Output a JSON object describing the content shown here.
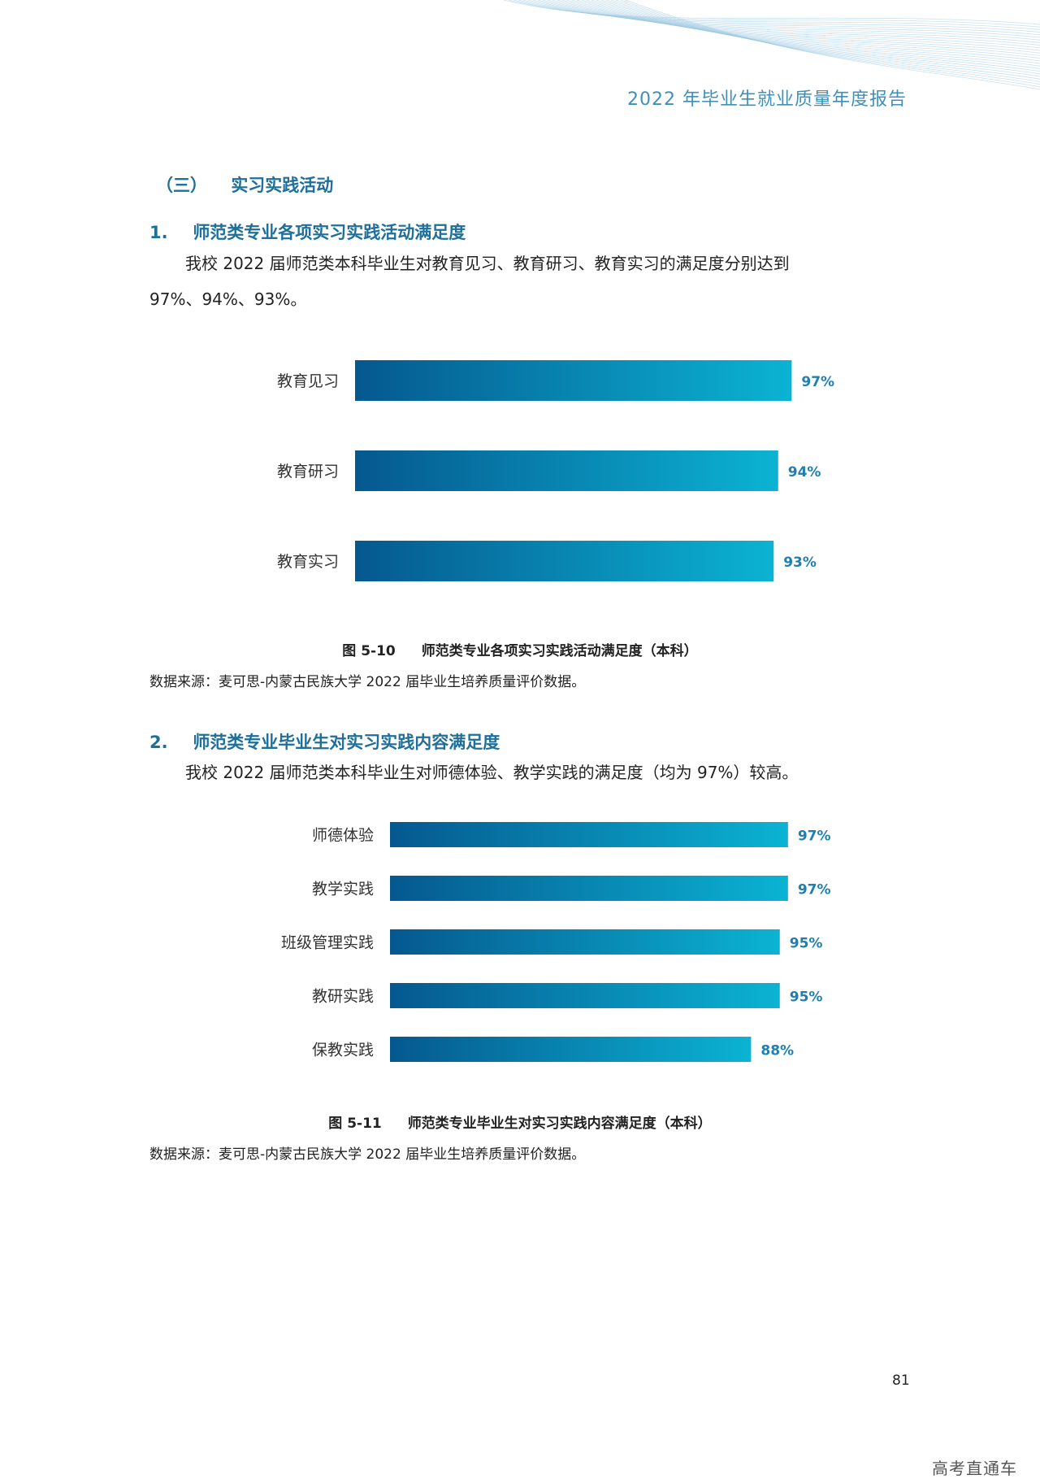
{
  "header": {
    "report_title": "2022 年毕业生就业质量年度报告"
  },
  "section": {
    "number": "（三）",
    "title": "实习实践活动"
  },
  "subsection1": {
    "number": "1.",
    "title": "师范类专业各项实习实践活动满足度",
    "paragraph_line1": "我校 2022 届师范类本科毕业生对教育见习、教育研习、教育实习的满足度分别达到",
    "paragraph_line2": "97%、94%、93%。"
  },
  "figure1": {
    "number": "图 5-10",
    "caption": "师范类专业各项实习实践活动满足度（本科）",
    "source": "数据来源：麦可思-内蒙古民族大学 2022 届毕业生培养质量评价数据。"
  },
  "subsection2": {
    "number": "2.",
    "title": "师范类专业毕业生对实习实践内容满足度",
    "paragraph": "我校 2022 届师范类本科毕业生对师德体验、教学实践的满足度（均为 97%）较高。"
  },
  "figure2": {
    "number": "图 5-11",
    "caption": "师范类专业毕业生对实习实践内容满足度（本科）",
    "source": "数据来源：麦可思-内蒙古民族大学 2022 届毕业生培养质量评价数据。"
  },
  "page_number": "81",
  "watermark": "高考直通车",
  "colors": {
    "accent": "#1e6f9a",
    "bar_gradient_start": "#05588f",
    "bar_gradient_end": "#0bb3d3",
    "value_label": "#1f7fb0"
  },
  "chart_data": [
    {
      "type": "bar",
      "orientation": "horizontal",
      "categories": [
        "教育见习",
        "教育研习",
        "教育实习"
      ],
      "values": [
        97,
        94,
        93
      ],
      "value_labels": [
        "97%",
        "94%",
        "93%"
      ],
      "xlim": [
        0,
        100
      ],
      "grid": false,
      "legend": "none"
    },
    {
      "type": "bar",
      "orientation": "horizontal",
      "categories": [
        "师德体验",
        "教学实践",
        "班级管理实践",
        "教研实践",
        "保教实践"
      ],
      "values": [
        97,
        97,
        95,
        95,
        88
      ],
      "value_labels": [
        "97%",
        "97%",
        "95%",
        "95%",
        "88%"
      ],
      "xlim": [
        0,
        100
      ],
      "grid": false,
      "legend": "none"
    }
  ]
}
